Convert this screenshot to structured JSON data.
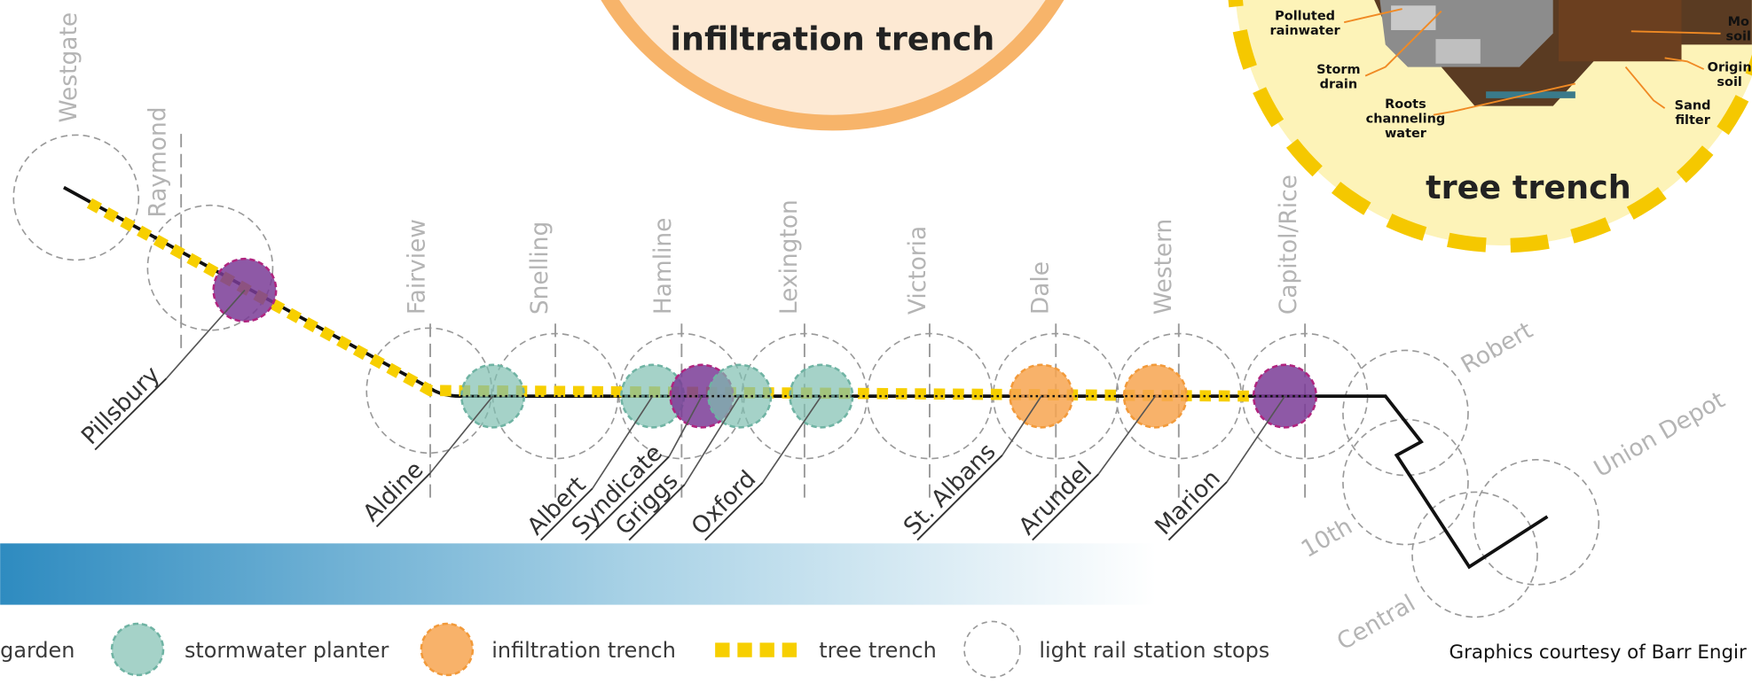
{
  "bubbles": {
    "infiltration_trench": "infiltration trench",
    "tree_trench": "tree trench"
  },
  "tree_trench_callouts": [
    [
      "Polluted",
      "rainwater"
    ],
    [
      "Storm",
      "drain"
    ],
    [
      "Roots",
      "channeling",
      "water"
    ],
    [
      "Sand",
      "filter"
    ],
    [
      "Origin",
      "soil"
    ],
    [
      "Mo",
      "soil"
    ]
  ],
  "stations": {
    "top": [
      "Westgate",
      "Raymond",
      "Fairview",
      "Snelling",
      "Hamline",
      "Lexington",
      "Victoria",
      "Dale",
      "Western",
      "Capitol/Rice"
    ],
    "bottom": [
      "Pillsbury",
      "Aldine",
      "Albert",
      "Syndicate",
      "Griggs",
      "Oxford",
      "St. Albans",
      "Arundel",
      "Marion"
    ],
    "east": [
      "Robert",
      "Union Depot",
      "10th",
      "Central"
    ]
  },
  "legend": [
    "garden",
    "stormwater planter",
    "infiltration trench",
    "tree trench",
    "light rail station stops"
  ],
  "credit": "Graphics courtesy of Barr Engir"
}
